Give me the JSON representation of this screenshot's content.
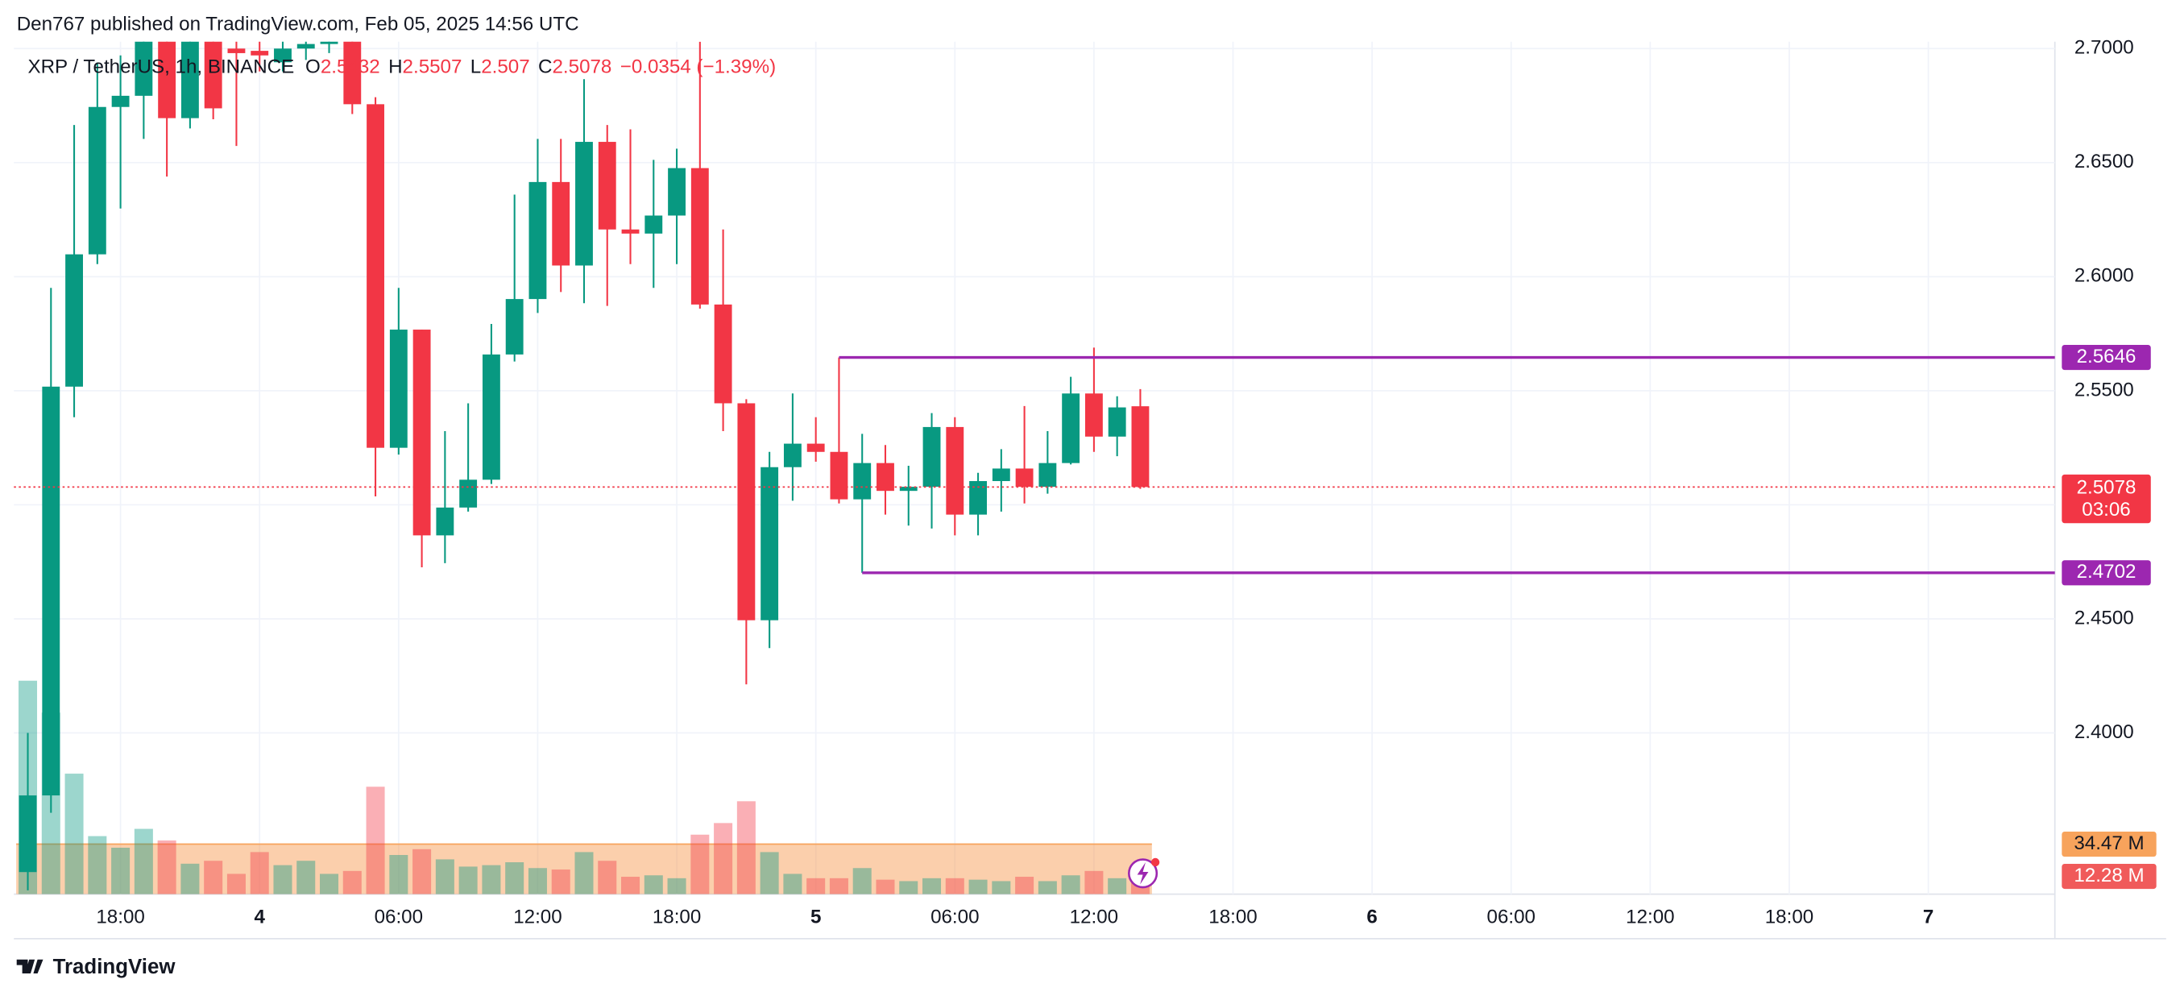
{
  "chart_data": {
    "type": "candlestick",
    "header": "Den767 published on TradingView.com, Feb 05, 2025 14:56 UTC",
    "symbol": "XRP / TetherUS, 1h, BINANCE",
    "ohlc_prefixes": [
      "O",
      "H",
      "L",
      "C"
    ],
    "legend_change": "−0.0354 (−1.39%)",
    "brand": "TradingView",
    "up_color": "#089981",
    "down_color": "#f23645",
    "ohlc": {
      "open": [
        2.339,
        2.3726,
        2.5518,
        2.6098,
        2.6744,
        2.6793,
        2.71,
        2.6695,
        2.705,
        2.7,
        2.699,
        2.694,
        2.7,
        2.702,
        2.705,
        2.6756,
        2.525,
        2.5768,
        2.4866,
        2.4988,
        2.511,
        2.5659,
        2.5902,
        2.6415,
        2.6049,
        2.6591,
        2.6207,
        2.6189,
        2.6268,
        2.6476,
        2.5878,
        2.5445,
        2.4494,
        2.5165,
        2.5268,
        2.5232,
        2.5024,
        2.5183,
        2.5061,
        2.5079,
        2.5341,
        2.4957,
        2.5104,
        2.5159,
        2.5079,
        2.5183,
        2.5488,
        2.5299,
        2.5432
      ],
      "high": [
        2.4,
        2.5951,
        2.6665,
        2.6939,
        2.697,
        2.72,
        2.73,
        2.72,
        2.72,
        2.71,
        2.705,
        2.71,
        2.71,
        2.71,
        2.71,
        2.6787,
        2.5951,
        2.5768,
        2.5323,
        2.5445,
        2.5793,
        2.636,
        2.6604,
        2.6604,
        2.6866,
        2.6665,
        2.6646,
        2.6512,
        2.6561,
        2.703,
        2.6207,
        2.5463,
        2.5232,
        2.5488,
        2.5384,
        2.5646,
        2.5311,
        2.5262,
        2.5171,
        2.5402,
        2.5384,
        2.514,
        2.5244,
        2.5433,
        2.5323,
        2.5561,
        2.5689,
        2.5476,
        2.5507
      ],
      "low": [
        2.331,
        2.365,
        2.5384,
        2.6055,
        2.6299,
        2.6604,
        2.6439,
        2.665,
        2.669,
        2.6573,
        2.69,
        2.69,
        2.695,
        2.698,
        2.6713,
        2.5037,
        2.522,
        2.4726,
        2.4744,
        2.497,
        2.5091,
        2.5628,
        2.5841,
        2.5933,
        2.5884,
        2.5872,
        2.6055,
        2.5951,
        2.6055,
        2.586,
        2.5323,
        2.4213,
        2.4372,
        2.5018,
        2.5189,
        2.5006,
        2.4702,
        2.4957,
        2.4909,
        2.4896,
        2.4866,
        2.4866,
        2.497,
        2.5006,
        2.5049,
        2.5177,
        2.5232,
        2.5213,
        2.507
      ],
      "close": [
        2.3726,
        2.5518,
        2.6098,
        2.6744,
        2.6793,
        2.7049,
        2.6695,
        2.705,
        2.6738,
        2.698,
        2.697,
        2.7,
        2.702,
        2.705,
        2.6756,
        2.525,
        2.5768,
        2.4866,
        2.4988,
        2.511,
        2.5659,
        2.5902,
        2.6415,
        2.6049,
        2.6591,
        2.6207,
        2.6189,
        2.6268,
        2.6476,
        2.5878,
        2.5445,
        2.4494,
        2.5165,
        2.5268,
        2.5232,
        2.5024,
        2.5183,
        2.5061,
        2.5079,
        2.5341,
        2.4957,
        2.5104,
        2.5159,
        2.5079,
        2.5183,
        2.5488,
        2.5299,
        2.5427,
        2.5078
      ]
    },
    "countdown": "03:06",
    "volume": {
      "values": [
        147,
        125,
        83,
        40,
        32,
        45,
        37,
        21,
        23,
        14,
        29,
        20,
        23,
        14,
        16,
        74,
        27,
        31,
        24,
        19,
        20,
        22,
        18,
        17,
        29,
        23,
        12,
        13,
        11,
        41,
        49,
        64,
        29,
        14,
        11,
        11,
        18,
        10,
        9,
        11,
        11,
        10,
        9,
        12,
        9,
        13,
        16,
        11,
        12.28
      ],
      "value_labels": [
        null,
        null,
        null,
        null,
        null,
        null,
        null,
        null,
        null,
        null,
        null,
        null,
        null,
        null,
        null,
        null,
        null,
        null,
        null,
        null,
        null,
        null,
        null,
        null,
        null,
        null,
        null,
        null,
        null,
        null,
        null,
        null,
        null,
        null,
        null,
        null,
        null,
        null,
        null,
        null,
        null,
        null,
        null,
        null,
        null,
        null,
        null,
        null,
        "12.28 M"
      ],
      "ma": {
        "value": 34.47,
        "label": "34.47 M"
      }
    },
    "hlines": [
      {
        "value": 2.5646,
        "start": 35,
        "color": "#9c27b0"
      },
      {
        "value": 2.4702,
        "start": 36,
        "color": "#9c27b0"
      }
    ],
    "xlim": [
      -0.6,
      87.46
    ],
    "xticks": [
      {
        "value": 4,
        "label": "18:00"
      },
      {
        "value": 10,
        "label": "4"
      },
      {
        "value": 16,
        "label": "06:00"
      },
      {
        "value": 22,
        "label": "12:00"
      },
      {
        "value": 28,
        "label": "18:00"
      },
      {
        "value": 34,
        "label": "5"
      },
      {
        "value": 40,
        "label": "06:00"
      },
      {
        "value": 46,
        "label": "12:00"
      },
      {
        "value": 52,
        "label": "18:00"
      },
      {
        "value": 58,
        "label": "6"
      },
      {
        "value": 64,
        "label": "06:00"
      },
      {
        "value": 70,
        "label": "12:00"
      },
      {
        "value": 76,
        "label": "18:00"
      },
      {
        "value": 82,
        "label": "7"
      }
    ],
    "ylim": [
      2.3293,
      2.703
    ],
    "yticks": [
      {
        "value": 2.4,
        "label": "2.4000"
      },
      {
        "value": 2.45,
        "label": "2.4500"
      },
      {
        "value": 2.5,
        "label": "2.5000"
      },
      {
        "value": 2.55,
        "label": "2.5500"
      },
      {
        "value": 2.6,
        "label": "2.6000"
      },
      {
        "value": 2.65,
        "label": "2.6500"
      },
      {
        "value": 2.7,
        "label": "2.7000"
      }
    ],
    "grid": true
  }
}
